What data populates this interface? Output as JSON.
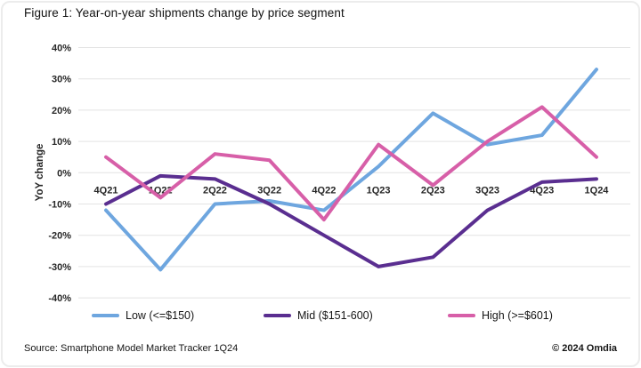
{
  "header": {
    "title": "Figure 1: Year-on-year shipments change by price segment"
  },
  "footer": {
    "source": "Source: Smartphone Model Market Tracker 1Q24",
    "copyright": "© 2024 Omdia"
  },
  "colors": {
    "low": "#6EA6DF",
    "mid": "#5A2E90",
    "high": "#D75FA8",
    "gridline": "#e3e3e3",
    "text": "#262626"
  },
  "chart_data": {
    "type": "line",
    "title": "Figure 1: Year-on-year shipments change by price segment",
    "xlabel": "",
    "ylabel": "YoY change",
    "ylim": [
      -40,
      40
    ],
    "ytick_step": 10,
    "ytick_labels": [
      "40%",
      "30%",
      "20%",
      "10%",
      "0%",
      "-10%",
      "-20%",
      "-30%",
      "-40%"
    ],
    "grid": true,
    "legend_position": "bottom",
    "categories": [
      "4Q21",
      "1Q22",
      "2Q22",
      "3Q22",
      "4Q22",
      "1Q23",
      "2Q23",
      "3Q23",
      "4Q23",
      "1Q24"
    ],
    "series": [
      {
        "name": "Low (<=$150)",
        "color": "#6EA6DF",
        "values": [
          -12,
          -31,
          -10,
          -9,
          -12,
          2,
          19,
          9,
          12,
          33
        ]
      },
      {
        "name": "Mid ($151-600)",
        "color": "#5A2E90",
        "values": [
          -10,
          -1,
          -2,
          -10,
          -20,
          -30,
          -27,
          -12,
          -3,
          -2
        ]
      },
      {
        "name": "High (>=$601)",
        "color": "#D75FA8",
        "values": [
          5,
          -8,
          6,
          4,
          -15,
          9,
          -4,
          10,
          21,
          5
        ]
      }
    ]
  }
}
